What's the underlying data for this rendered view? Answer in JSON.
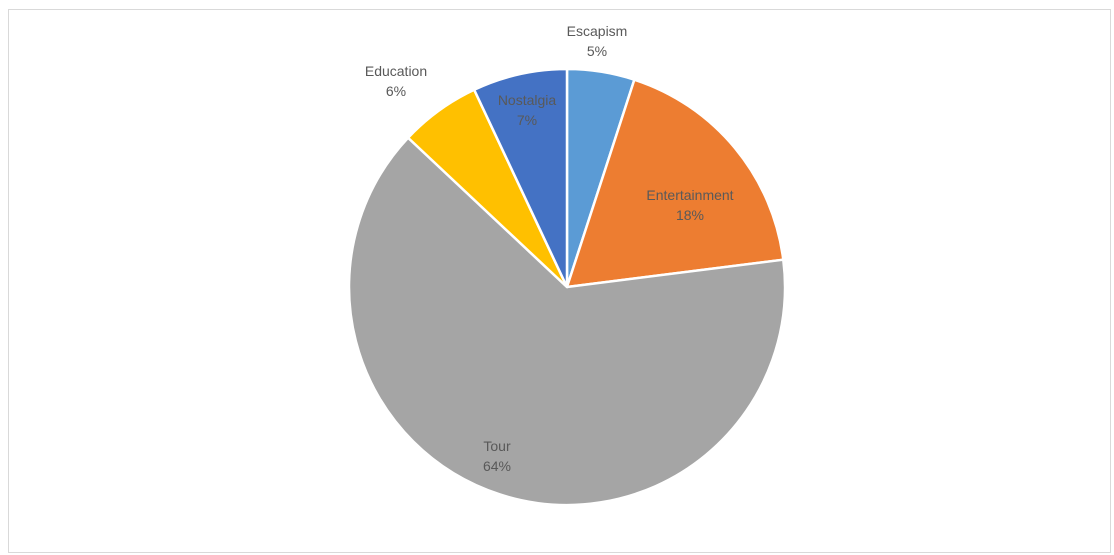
{
  "chart_data": {
    "type": "pie",
    "title": "",
    "categories": [
      "Escapism",
      "Entertainment",
      "Tour",
      "Education",
      "Nostalgia"
    ],
    "values": [
      5,
      18,
      64,
      6,
      7
    ],
    "percent_labels": [
      "5%",
      "18%",
      "64%",
      "6%",
      "7%"
    ],
    "colors": [
      "#5b9bd5",
      "#ed7d31",
      "#a5a5a5",
      "#ffc000",
      "#4472c4"
    ],
    "start_angle": "12 o'clock",
    "direction": "clockwise",
    "legend": "none",
    "data_labels": "category name and percentage"
  }
}
